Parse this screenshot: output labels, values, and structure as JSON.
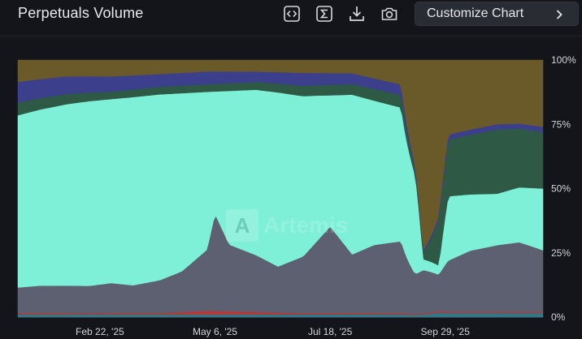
{
  "header": {
    "title": "Perpetuals Volume",
    "customize_label": "Customize Chart"
  },
  "toolbar": {
    "icons": [
      "embed-code-icon",
      "sum-icon",
      "download-icon",
      "camera-icon",
      "chevron-right-icon"
    ]
  },
  "watermark": {
    "text": "Artemis"
  },
  "chart_data": {
    "type": "area",
    "stacked": true,
    "normalized_percent": true,
    "title": "Perpetuals Volume",
    "xlabel": "",
    "ylabel": "",
    "x_range": [
      "2025-01-01",
      "2025-11-30"
    ],
    "ylim": [
      0,
      100
    ],
    "x_tick_labels": [
      "Feb 22, '25",
      "May 6, '25",
      "Jul 18, '25",
      "Sep 29, '25"
    ],
    "y_tick_labels": [
      "100%",
      "75%",
      "50%",
      "25%",
      "0%"
    ],
    "grid": false,
    "legend": "none",
    "colors": [
      "#2a7a8a",
      "#b23a3a",
      "#5d6070",
      "#7ef0d8",
      "#2e5a45",
      "#3b3f8c",
      "#6a5a2a"
    ],
    "series": [
      {
        "values": [
          [
            "2025-01-01",
            1
          ],
          [
            "2025-02-01",
            1
          ],
          [
            "2025-03-01",
            1
          ],
          [
            "2025-04-01",
            1
          ],
          [
            "2025-05-01",
            1
          ],
          [
            "2025-06-01",
            1
          ],
          [
            "2025-07-01",
            1
          ],
          [
            "2025-08-01",
            1
          ],
          [
            "2025-09-01",
            1
          ],
          [
            "2025-10-01",
            1.5
          ],
          [
            "2025-11-01",
            1.5
          ],
          [
            "2025-11-30",
            1.5
          ]
        ]
      },
      {
        "values": [
          [
            "2025-01-01",
            0.5
          ],
          [
            "2025-02-01",
            0.5
          ],
          [
            "2025-03-01",
            0.5
          ],
          [
            "2025-04-01",
            0.5
          ],
          [
            "2025-05-01",
            1.5
          ],
          [
            "2025-06-01",
            1
          ],
          [
            "2025-07-01",
            0.5
          ],
          [
            "2025-08-01",
            0.5
          ],
          [
            "2025-09-01",
            0.5
          ],
          [
            "2025-10-01",
            0.5
          ],
          [
            "2025-11-01",
            0.5
          ],
          [
            "2025-11-30",
            0.5
          ]
        ]
      },
      {
        "values": [
          [
            "2025-01-01",
            10
          ],
          [
            "2025-01-15",
            11
          ],
          [
            "2025-02-01",
            11
          ],
          [
            "2025-02-15",
            11
          ],
          [
            "2025-03-01",
            12
          ],
          [
            "2025-03-15",
            11
          ],
          [
            "2025-04-01",
            13
          ],
          [
            "2025-04-15",
            16
          ],
          [
            "2025-05-01",
            24
          ],
          [
            "2025-05-06",
            38
          ],
          [
            "2025-05-15",
            26
          ],
          [
            "2025-06-01",
            22
          ],
          [
            "2025-06-15",
            18
          ],
          [
            "2025-07-01",
            22
          ],
          [
            "2025-07-10",
            28
          ],
          [
            "2025-07-18",
            33
          ],
          [
            "2025-08-01",
            22
          ],
          [
            "2025-08-15",
            26
          ],
          [
            "2025-09-01",
            28
          ],
          [
            "2025-09-15",
            20
          ],
          [
            "2025-09-25",
            12
          ],
          [
            "2025-10-01",
            20
          ],
          [
            "2025-10-15",
            24
          ],
          [
            "2025-11-01",
            26
          ],
          [
            "2025-11-15",
            28
          ],
          [
            "2025-11-30",
            24
          ]
        ]
      },
      {
        "values": [
          [
            "2025-01-01",
            67
          ],
          [
            "2025-01-15",
            70
          ],
          [
            "2025-02-01",
            72
          ],
          [
            "2025-02-15",
            74
          ],
          [
            "2025-03-01",
            73
          ],
          [
            "2025-03-15",
            74
          ],
          [
            "2025-04-01",
            73
          ],
          [
            "2025-04-15",
            70
          ],
          [
            "2025-05-01",
            62
          ],
          [
            "2025-05-06",
            48
          ],
          [
            "2025-05-15",
            60
          ],
          [
            "2025-06-01",
            64
          ],
          [
            "2025-06-15",
            68
          ],
          [
            "2025-07-01",
            62
          ],
          [
            "2025-07-10",
            56
          ],
          [
            "2025-07-18",
            50
          ],
          [
            "2025-08-01",
            60
          ],
          [
            "2025-08-15",
            55
          ],
          [
            "2025-09-01",
            52
          ],
          [
            "2025-09-10",
            56
          ],
          [
            "2025-09-15",
            5
          ],
          [
            "2025-09-25",
            3
          ],
          [
            "2025-10-01",
            25
          ],
          [
            "2025-10-15",
            22
          ],
          [
            "2025-11-01",
            20
          ],
          [
            "2025-11-15",
            22
          ],
          [
            "2025-11-30",
            24
          ]
        ]
      },
      {
        "values": [
          [
            "2025-01-01",
            5
          ],
          [
            "2025-02-01",
            4
          ],
          [
            "2025-03-01",
            3
          ],
          [
            "2025-04-01",
            3
          ],
          [
            "2025-05-01",
            3
          ],
          [
            "2025-06-01",
            3
          ],
          [
            "2025-07-01",
            4
          ],
          [
            "2025-08-01",
            4
          ],
          [
            "2025-09-01",
            5
          ],
          [
            "2025-09-15",
            3
          ],
          [
            "2025-10-01",
            22
          ],
          [
            "2025-11-01",
            25
          ],
          [
            "2025-11-30",
            22
          ]
        ]
      },
      {
        "values": [
          [
            "2025-01-01",
            8
          ],
          [
            "2025-02-01",
            7
          ],
          [
            "2025-03-01",
            6
          ],
          [
            "2025-04-01",
            5
          ],
          [
            "2025-05-01",
            5
          ],
          [
            "2025-06-01",
            4
          ],
          [
            "2025-07-01",
            5
          ],
          [
            "2025-08-01",
            4
          ],
          [
            "2025-09-01",
            4
          ],
          [
            "2025-09-15",
            1
          ],
          [
            "2025-10-01",
            2
          ],
          [
            "2025-11-01",
            2
          ],
          [
            "2025-11-30",
            2
          ]
        ]
      },
      {
        "values": [
          [
            "2025-01-01",
            8.5
          ],
          [
            "2025-02-01",
            6.5
          ],
          [
            "2025-03-01",
            6.5
          ],
          [
            "2025-04-01",
            5.5
          ],
          [
            "2025-05-01",
            4.5
          ],
          [
            "2025-06-01",
            4.5
          ],
          [
            "2025-07-01",
            5
          ],
          [
            "2025-08-01",
            5
          ],
          [
            "2025-09-01",
            9.5
          ],
          [
            "2025-09-15",
            88
          ],
          [
            "2025-10-01",
            29
          ],
          [
            "2025-11-01",
            25
          ],
          [
            "2025-11-30",
            26
          ]
        ]
      }
    ]
  }
}
